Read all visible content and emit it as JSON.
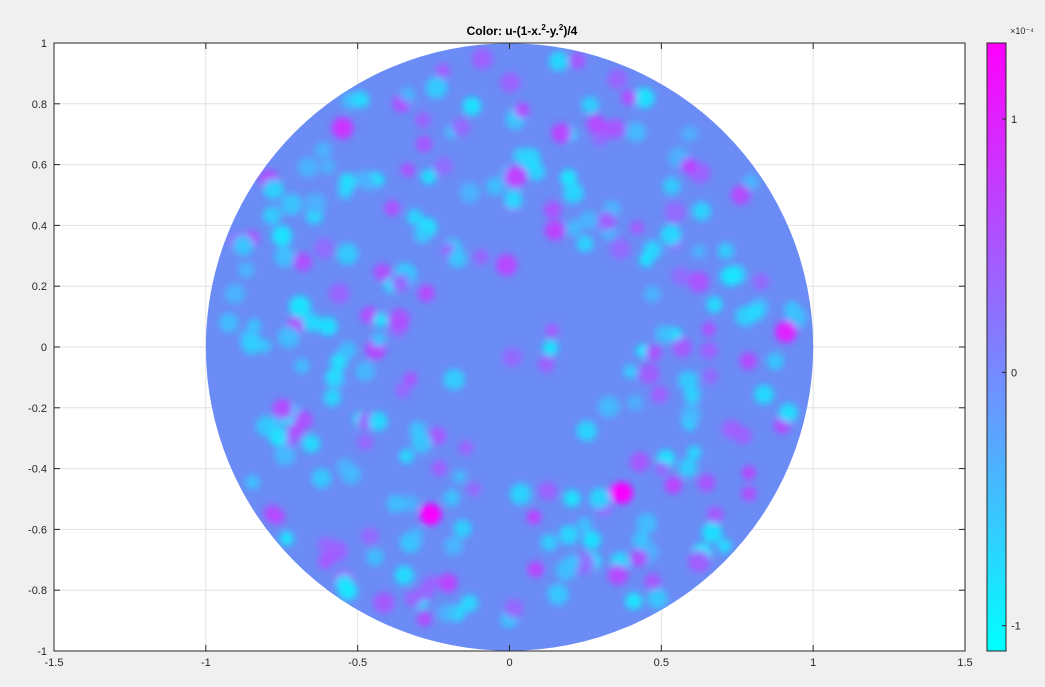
{
  "chart_data": [
    {
      "type": "heatmap",
      "title": {
        "prefix": "Color:  u-(1-x.",
        "sup1": "2",
        "mid": "-y.",
        "sup2": "2",
        "suffix": ")/4"
      },
      "domain": "unit disk x^2 + y^2 <= 1",
      "xlim": [
        -1.5,
        1.5
      ],
      "ylim": [
        -1,
        1
      ],
      "xticks": [
        -1.5,
        -1,
        -0.5,
        0,
        0.5,
        1,
        1.5
      ],
      "xtick_labels": [
        "-1.5",
        "-1",
        "-0.5",
        "0",
        "0.5",
        "1",
        "1.5"
      ],
      "yticks": [
        1,
        0.8,
        0.6,
        0.4,
        0.2,
        0,
        -0.2,
        -0.4,
        -0.6,
        -0.8,
        -1
      ],
      "ytick_labels": [
        "1",
        "0.8",
        "0.6",
        "0.4",
        "0.2",
        "0",
        "-0.2",
        "-0.4",
        "-0.6",
        "-0.8",
        "-1"
      ],
      "grid": true,
      "colormap": "cool",
      "colormap_colors": [
        "#00ffff",
        "#ff00ff"
      ],
      "background_value": 0,
      "background_color": "#6b8cf5",
      "clim_e4": [
        -1.1,
        1.3
      ],
      "colorbar": {
        "exponent_label": "×10⁻⁴",
        "ticks": [
          1,
          0,
          -1
        ],
        "tick_labels": [
          "1",
          "0",
          "-1"
        ],
        "placement": "right"
      },
      "notable_extrema": [
        {
          "x": -0.26,
          "y": -0.55,
          "value_e4": 1.25
        },
        {
          "x": 0.37,
          "y": -0.48,
          "value_e4": 1.25
        },
        {
          "x": 0.91,
          "y": 0.05,
          "value_e4": 1.0
        },
        {
          "x": -0.55,
          "y": 0.72,
          "value_e4": 0.8
        },
        {
          "x": 0.02,
          "y": 0.56,
          "value_e4": 0.7
        },
        {
          "x": -0.01,
          "y": 0.27,
          "value_e4": 0.6
        }
      ]
    }
  ]
}
